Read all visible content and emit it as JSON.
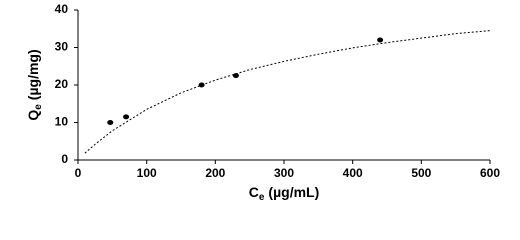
{
  "chart_data": {
    "type": "scatter",
    "x_label": {
      "main": "C",
      "sub": "e",
      "unit": "(µg/mL)"
    },
    "y_label": {
      "main": "Q",
      "sub": "e",
      "unit": "(µg/mg)"
    },
    "xlim": [
      0,
      600
    ],
    "xticks": [
      0,
      100,
      200,
      300,
      400,
      500,
      600
    ],
    "ylim": [
      0,
      40
    ],
    "yticks": [
      0,
      10,
      20,
      30,
      40
    ],
    "series": [
      {
        "type": "scatter",
        "color": "#000000",
        "x": [
          47,
          70,
          180,
          230,
          440
        ],
        "values": [
          10,
          11.5,
          20,
          22.5,
          32
        ]
      },
      {
        "type": "line",
        "dashed": true,
        "color": "#000000",
        "x": [
          10,
          25,
          50,
          100,
          150,
          200,
          250,
          300,
          350,
          400,
          450,
          500,
          550,
          600
        ],
        "values": [
          1.8,
          4.2,
          7.8,
          13.5,
          17.9,
          21.3,
          24.1,
          26.3,
          28.2,
          29.9,
          31.3,
          32.5,
          33.7,
          34.5
        ]
      }
    ]
  }
}
